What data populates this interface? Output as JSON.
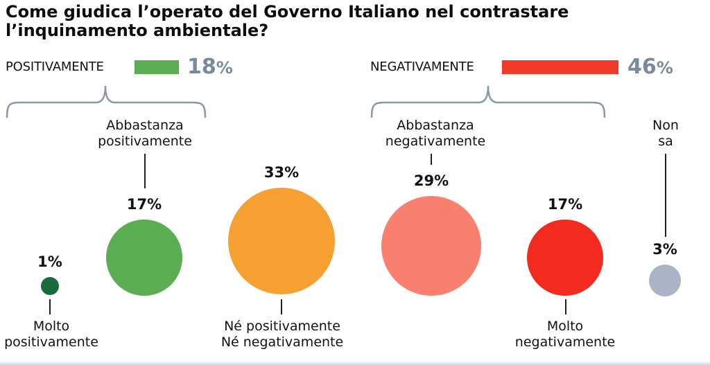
{
  "title": "Come giudica l’operato del Governo Italiano nel contrastare l’inquinamento ambientale?",
  "summary": {
    "positive": {
      "label": "POSITIVAMENTE",
      "value": "18",
      "unit": "%",
      "color": "#5aad50"
    },
    "negative": {
      "label": "NEGATIVAMENTE",
      "value": "46",
      "unit": "%",
      "color": "#f23a2a"
    }
  },
  "chart_data": {
    "type": "bubble",
    "title": "Come giudica l’operato del Governo Italiano nel contrastare l’inquinamento ambientale?",
    "groups": [
      {
        "label": "POSITIVAMENTE",
        "value": 18
      },
      {
        "label": "NEGATIVAMENTE",
        "value": 46
      }
    ],
    "categories": [
      "Molto positivamente",
      "Abbastanza positivamente",
      "Né positivamente Né negativamente",
      "Abbastanza negativamente",
      "Molto negativamente",
      "Non sa"
    ],
    "values": [
      1,
      17,
      33,
      29,
      17,
      3
    ],
    "colors": [
      "#1a6b3c",
      "#5aad50",
      "#f5a030",
      "#f97f6e",
      "#f32a1e",
      "#aab4c6"
    ]
  },
  "items": [
    {
      "label_lines": [
        "Molto",
        "positivamente"
      ],
      "pct": "1%"
    },
    {
      "label_lines": [
        "Abbastanza",
        "positivamente"
      ],
      "pct": "17%"
    },
    {
      "label_lines": [
        "Né positivamente",
        "Né negativamente"
      ],
      "pct": "33%"
    },
    {
      "label_lines": [
        "Abbastanza",
        "negativamente"
      ],
      "pct": "29%"
    },
    {
      "label_lines": [
        "Molto",
        "negativamente"
      ],
      "pct": "17%"
    },
    {
      "label_lines": [
        "Non",
        "sa"
      ],
      "pct": "3%"
    }
  ]
}
